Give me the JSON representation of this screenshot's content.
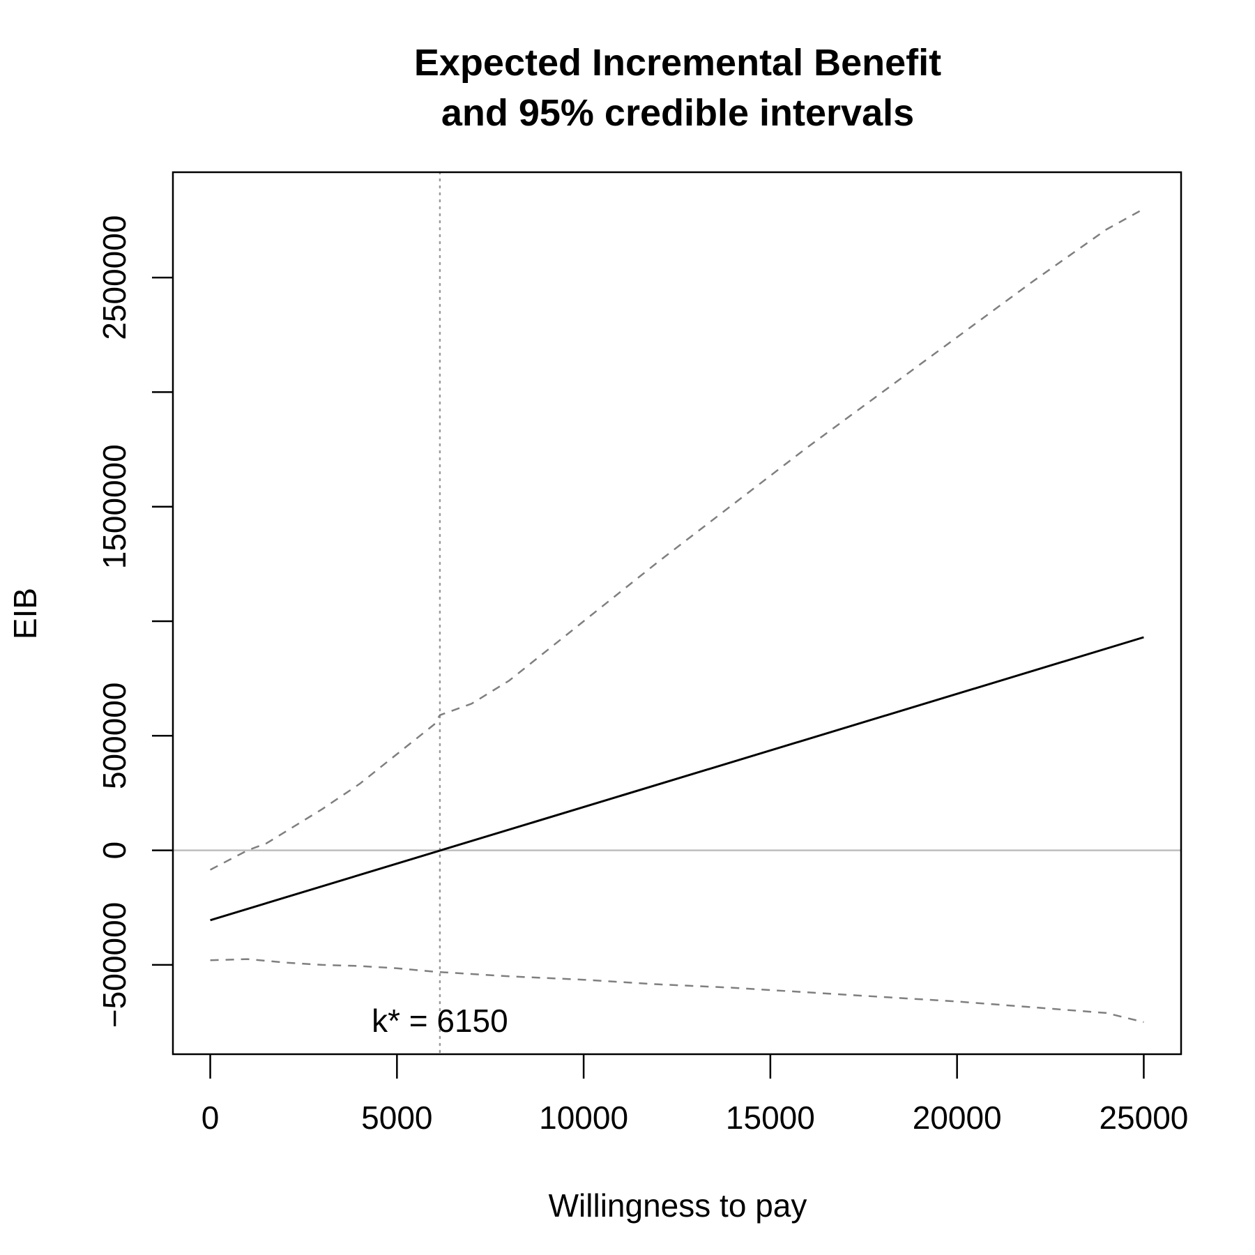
{
  "chart_data": {
    "type": "line",
    "title": [
      "Expected Incremental Benefit",
      "and 95% credible intervals"
    ],
    "xlabel": "Willingness to pay",
    "ylabel": "EIB",
    "xlim": [
      -1000,
      26000
    ],
    "ylim": [
      -890000,
      2960000
    ],
    "x_ticks": [
      0,
      5000,
      10000,
      15000,
      20000,
      25000
    ],
    "y_ticks": [
      -500000,
      0,
      500000,
      1000000,
      1500000,
      2000000,
      2500000
    ],
    "y_tick_labels": [
      "-500000",
      "0",
      "500000",
      "",
      "1500000",
      "",
      "2500000"
    ],
    "grid": false,
    "series": [
      {
        "style": "solid",
        "color": "#000000",
        "x": [
          0,
          25000
        ],
        "y": [
          -305000,
          930000
        ]
      },
      {
        "style": "dashed",
        "color": "#7f7f7f",
        "x": [
          0,
          1000,
          1500,
          2000,
          3000,
          4000,
          5000,
          6000,
          6150,
          7000,
          8000,
          9000,
          10000,
          12000,
          14000,
          16000,
          18000,
          20000,
          22000,
          24000,
          25000
        ],
        "y": [
          -85000,
          0,
          30000,
          80000,
          180000,
          290000,
          420000,
          550000,
          590000,
          640000,
          740000,
          870000,
          1000000,
          1260000,
          1510000,
          1760000,
          2000000,
          2240000,
          2480000,
          2710000,
          2800000
        ]
      },
      {
        "style": "dashed",
        "color": "#7f7f7f",
        "x": [
          0,
          1000,
          2000,
          3000,
          4000,
          5000,
          6000,
          8000,
          10000,
          12000,
          14000,
          16000,
          18000,
          20000,
          22000,
          24000,
          25000
        ],
        "y": [
          -480000,
          -475000,
          -490000,
          -500000,
          -505000,
          -515000,
          -530000,
          -550000,
          -565000,
          -585000,
          -600000,
          -620000,
          -640000,
          -660000,
          -685000,
          -710000,
          -750000
        ]
      }
    ],
    "reference_lines": {
      "horizontal_zero": {
        "y": 0,
        "color": "#bebebe"
      },
      "vertical_kstar": {
        "x": 6150,
        "color": "#9a9a9a",
        "style": "dotted"
      }
    },
    "annotation": {
      "text": "k* = 6150",
      "x": 6150,
      "y": -750000
    }
  }
}
